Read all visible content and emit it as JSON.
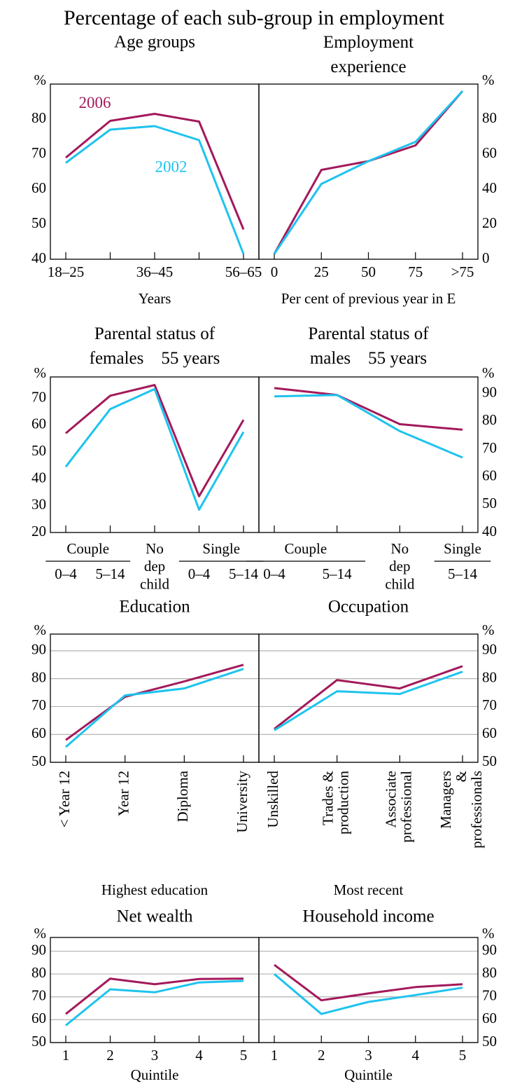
{
  "title": "Percentage of each sub-group in employment",
  "chart_data": [
    {
      "type": "line",
      "title": "Age groups",
      "y_unit": "%",
      "axis_side": "left",
      "x_label": "Years",
      "categories": [
        "18–25",
        null,
        "36–45",
        null,
        "56–65"
      ],
      "ylim": [
        40,
        90
      ],
      "yticks": [
        40,
        50,
        60,
        70,
        80
      ],
      "grid": false,
      "series": [
        {
          "name": "2006",
          "color": "#a3195b",
          "values": [
            69,
            79.5,
            81.5,
            79.3,
            48.5
          ]
        },
        {
          "name": "2002",
          "color": "#1ec3ef",
          "values": [
            67.5,
            77,
            78,
            74,
            41.5
          ]
        }
      ]
    },
    {
      "type": "line",
      "title": "Employment\nexperience",
      "y_unit": "%",
      "axis_side": "right",
      "x_label": "Per cent of previous year in E",
      "categories": [
        "0",
        "25",
        "50",
        "75",
        ">75"
      ],
      "ylim": [
        0,
        100
      ],
      "yticks": [
        0,
        20,
        40,
        60,
        80
      ],
      "grid": false,
      "series": [
        {
          "color": "#a3195b",
          "values": [
            3,
            51,
            56,
            65,
            96
          ]
        },
        {
          "color": "#1ec3ef",
          "values": [
            3,
            43,
            56,
            67,
            96
          ]
        }
      ]
    },
    {
      "type": "line",
      "title": "Parental status of\nfemales    55 years",
      "y_unit": "%",
      "axis_side": "left",
      "categories": [
        "0–4",
        "5–14",
        "No\ndep\nchild",
        "0–4",
        "5–14"
      ],
      "category_groups": [
        "Couple",
        "Couple",
        null,
        "Single",
        "Single"
      ],
      "ylim": [
        20,
        78
      ],
      "yticks": [
        20,
        30,
        40,
        50,
        60,
        70
      ],
      "grid": false,
      "series": [
        {
          "color": "#a3195b",
          "values": [
            57,
            71,
            75,
            33.5,
            62
          ]
        },
        {
          "color": "#1ec3ef",
          "values": [
            44.5,
            66,
            73.5,
            28.5,
            57.5
          ]
        }
      ]
    },
    {
      "type": "line",
      "title": "Parental status of\nmales    55 years",
      "y_unit": "%",
      "axis_side": "right",
      "categories": [
        "0–4",
        "5–14",
        "No\ndep\nchild",
        "5–14"
      ],
      "category_groups": [
        "Couple",
        "Couple",
        null,
        "Single"
      ],
      "ylim": [
        40,
        96
      ],
      "yticks": [
        40,
        50,
        60,
        70,
        80,
        90
      ],
      "grid": false,
      "series": [
        {
          "color": "#a3195b",
          "values": [
            92,
            89.5,
            79,
            77
          ]
        },
        {
          "color": "#1ec3ef",
          "values": [
            89,
            89.5,
            76.5,
            67
          ]
        }
      ]
    },
    {
      "type": "line",
      "title": "Education",
      "y_unit": "%",
      "axis_side": "left",
      "x_label": "Highest education",
      "categories": [
        "< Year 12",
        "Year 12",
        "Diploma",
        "University"
      ],
      "rotated_labels": true,
      "ylim": [
        50,
        96
      ],
      "yticks": [
        50,
        60,
        70,
        80,
        90
      ],
      "grid": true,
      "series": [
        {
          "color": "#a3195b",
          "values": [
            58,
            73.5,
            79,
            85
          ]
        },
        {
          "color": "#1ec3ef",
          "values": [
            55.5,
            74,
            76.5,
            83.5
          ]
        }
      ]
    },
    {
      "type": "line",
      "title": "Occupation",
      "y_unit": "%",
      "axis_side": "right",
      "x_label": "Most recent",
      "categories": [
        "Unskilled",
        "Trades &\nproduction",
        "Associate\nprofessional",
        "Managers\n&\nprofessionals"
      ],
      "rotated_labels": true,
      "ylim": [
        50,
        96
      ],
      "yticks": [
        50,
        60,
        70,
        80,
        90
      ],
      "grid": true,
      "series": [
        {
          "color": "#a3195b",
          "values": [
            62,
            79.5,
            76.5,
            84.5
          ]
        },
        {
          "color": "#1ec3ef",
          "values": [
            61.5,
            75.5,
            74.5,
            82.5
          ]
        }
      ]
    },
    {
      "type": "line",
      "title": "Net wealth",
      "y_unit": "%",
      "axis_side": "left",
      "x_label": "Quintile",
      "categories": [
        "1",
        "2",
        "3",
        "4",
        "5"
      ],
      "ylim": [
        50,
        96
      ],
      "yticks": [
        50,
        60,
        70,
        80,
        90
      ],
      "grid": true,
      "series": [
        {
          "color": "#a3195b",
          "values": [
            62.5,
            78,
            75.5,
            77.8,
            78
          ]
        },
        {
          "color": "#1ec3ef",
          "values": [
            57.5,
            73.3,
            72,
            76.3,
            77
          ]
        }
      ]
    },
    {
      "type": "line",
      "title": "Household income",
      "y_unit": "%",
      "axis_side": "right",
      "x_label": "Quintile",
      "categories": [
        "1",
        "2",
        "3",
        "4",
        "5"
      ],
      "ylim": [
        50,
        96
      ],
      "yticks": [
        50,
        60,
        70,
        80,
        90
      ],
      "grid": true,
      "series": [
        {
          "color": "#a3195b",
          "values": [
            84,
            68.5,
            71.5,
            74.3,
            75.5
          ]
        },
        {
          "color": "#1ec3ef",
          "values": [
            80,
            62.5,
            67.8,
            70.8,
            74
          ]
        }
      ]
    }
  ]
}
